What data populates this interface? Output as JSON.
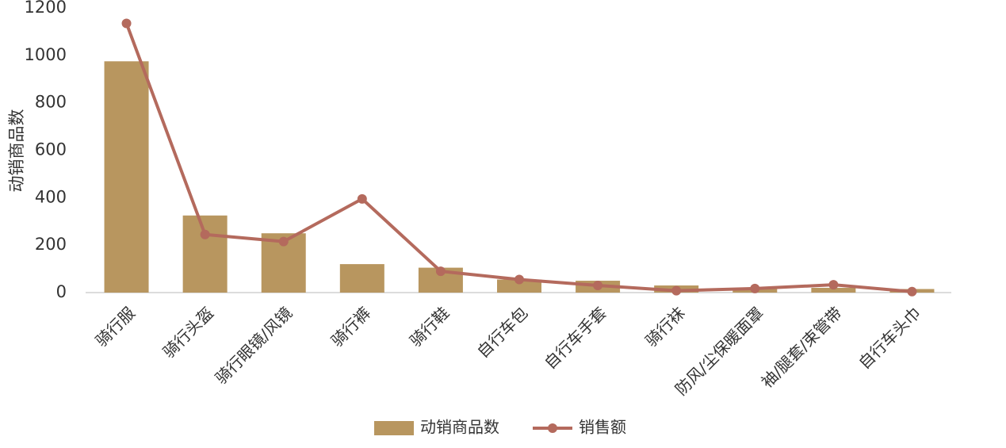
{
  "chart_data": {
    "type": "bar",
    "y_label": "动销商品数",
    "categories": [
      "骑行服",
      "骑行头盔",
      "骑行眼镜/风镜",
      "骑行裤",
      "骑行鞋",
      "自行车包",
      "自行车手套",
      "骑行袜",
      "防风/尘保暖面罩",
      "袖/腿套/束管带",
      "自行车头巾"
    ],
    "series": [
      {
        "name": "动销商品数",
        "type": "bar",
        "color": "#b8965f",
        "values": [
          975,
          325,
          250,
          120,
          105,
          55,
          50,
          30,
          20,
          20,
          15
        ]
      },
      {
        "name": "销售额",
        "type": "line",
        "color": "#b46a5d",
        "values": [
          1135,
          245,
          215,
          395,
          90,
          55,
          30,
          8,
          17,
          33,
          4
        ]
      }
    ],
    "ylim": [
      0,
      1200
    ],
    "yticks": [
      0,
      200,
      400,
      600,
      800,
      1000,
      1200
    ],
    "legend": "bottom"
  }
}
